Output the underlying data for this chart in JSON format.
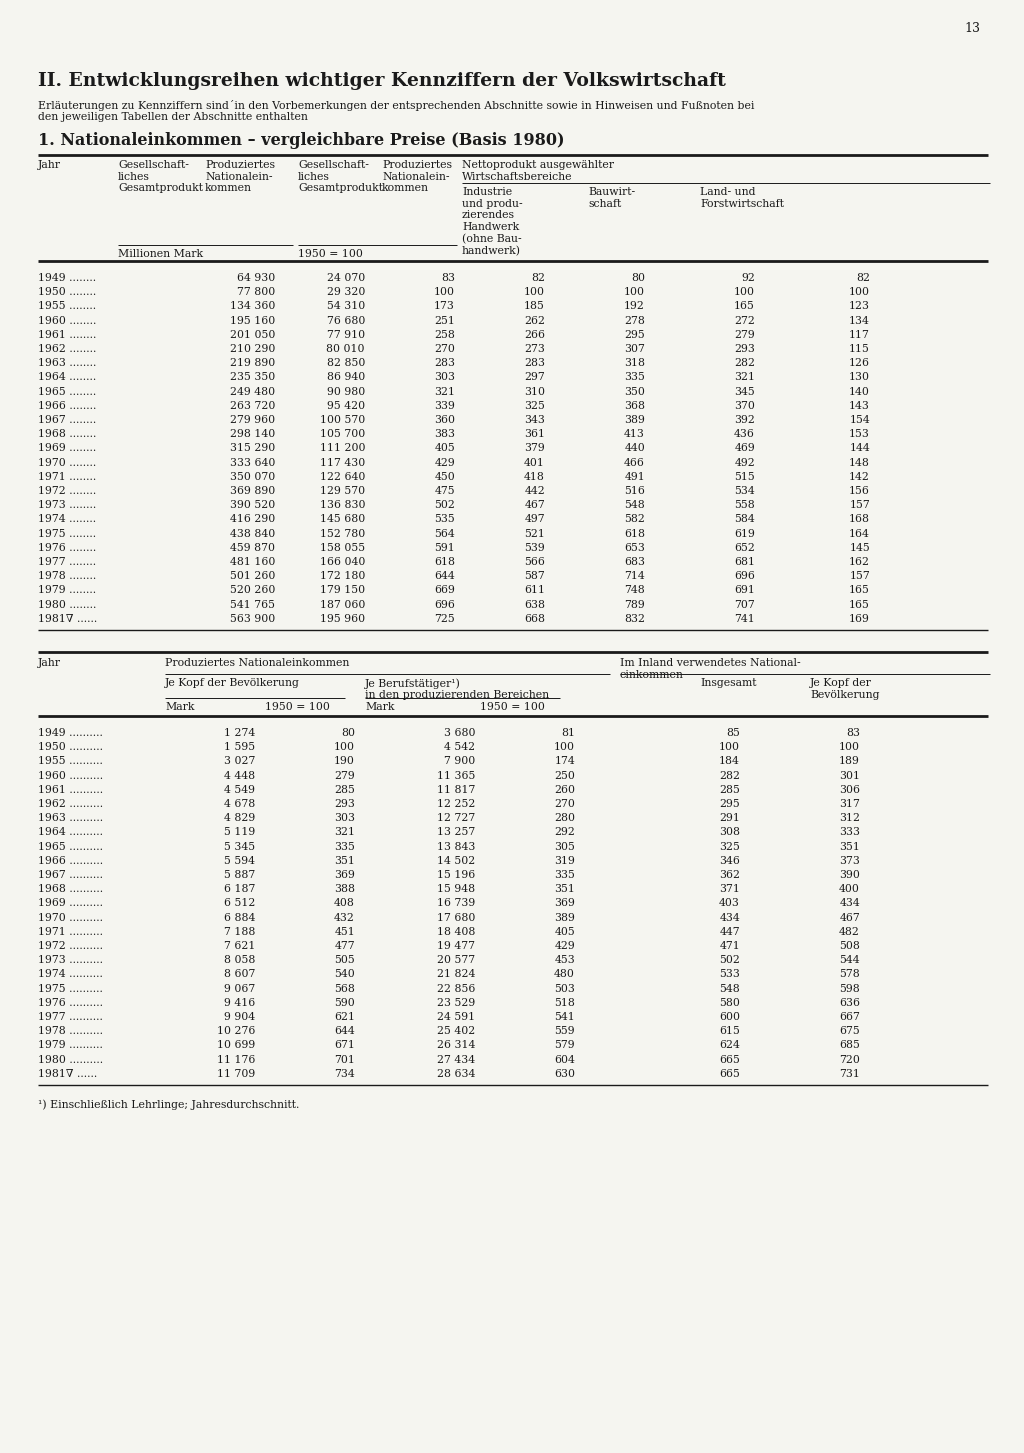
{
  "page_number": "13",
  "main_title": "II. Entwicklungsreihen wichtiger Kennziffern der Volkswirtschaft",
  "subtitle_line1": "Erläuterungen zu Kennziffern sind´in den Vorbemerkungen der entsprechenden Abschnitte sowie in Hinweisen und Fußnoten bei",
  "subtitle_line2": "den jeweiligen Tabellen der Abschnitte enthalten",
  "section_title": "1. Nationaleinkommen – vergleichbare Preise (Basis 1980)",
  "t1_col_headers": [
    "Jahr",
    "Gesellschaft-\nliches\nGesamtprodukt",
    "Produziertes\nNationalein-\nkommen",
    "Gesellschaft-\nliches\nGesamtprodukt",
    "Produziertes\nNationalein-\nkommen",
    "Nettoprodukt ausgewählter\nWirtschaftsbereiche"
  ],
  "t1_sub_headers": [
    "Industrie\nund produ-\nzierendes\nHandwerk\n(ohne Bau-\nhandwerk)",
    "Bauwirt-\nschaft",
    "Land- und\nForstwirtschaft"
  ],
  "t1_unit1": "Millionen Mark",
  "t1_unit2": "1950 = 100",
  "table1_data": [
    [
      "1949",
      "64 930",
      "24 070",
      "83",
      "82",
      "80",
      "92",
      "82"
    ],
    [
      "1950",
      "77 800",
      "29 320",
      "100",
      "100",
      "100",
      "100",
      "100"
    ],
    [
      "1955",
      "134 360",
      "54 310",
      "173",
      "185",
      "192",
      "165",
      "123"
    ],
    [
      "1960",
      "195 160",
      "76 680",
      "251",
      "262",
      "278",
      "272",
      "134"
    ],
    [
      "1961",
      "201 050",
      "77 910",
      "258",
      "266",
      "295",
      "279",
      "117"
    ],
    [
      "1962",
      "210 290",
      "80 010",
      "270",
      "273",
      "307",
      "293",
      "115"
    ],
    [
      "1963",
      "219 890",
      "82 850",
      "283",
      "283",
      "318",
      "282",
      "126"
    ],
    [
      "1964",
      "235 350",
      "86 940",
      "303",
      "297",
      "335",
      "321",
      "130"
    ],
    [
      "1965",
      "249 480",
      "90 980",
      "321",
      "310",
      "350",
      "345",
      "140"
    ],
    [
      "1966",
      "263 720",
      "95 420",
      "339",
      "325",
      "368",
      "370",
      "143"
    ],
    [
      "1967",
      "279 960",
      "100 570",
      "360",
      "343",
      "389",
      "392",
      "154"
    ],
    [
      "1968",
      "298 140",
      "105 700",
      "383",
      "361",
      "413",
      "436",
      "153"
    ],
    [
      "1969",
      "315 290",
      "111 200",
      "405",
      "379",
      "440",
      "469",
      "144"
    ],
    [
      "1970",
      "333 640",
      "117 430",
      "429",
      "401",
      "466",
      "492",
      "148"
    ],
    [
      "1971",
      "350 070",
      "122 640",
      "450",
      "418",
      "491",
      "515",
      "142"
    ],
    [
      "1972",
      "369 890",
      "129 570",
      "475",
      "442",
      "516",
      "534",
      "156"
    ],
    [
      "1973",
      "390 520",
      "136 830",
      "502",
      "467",
      "548",
      "558",
      "157"
    ],
    [
      "1974",
      "416 290",
      "145 680",
      "535",
      "497",
      "582",
      "584",
      "168"
    ],
    [
      "1975",
      "438 840",
      "152 780",
      "564",
      "521",
      "618",
      "619",
      "164"
    ],
    [
      "1976",
      "459 870",
      "158 055",
      "591",
      "539",
      "653",
      "652",
      "145"
    ],
    [
      "1977",
      "481 160",
      "166 040",
      "618",
      "566",
      "683",
      "681",
      "162"
    ],
    [
      "1978",
      "501 260",
      "172 180",
      "644",
      "587",
      "714",
      "696",
      "157"
    ],
    [
      "1979",
      "520 260",
      "179 150",
      "669",
      "611",
      "748",
      "691",
      "165"
    ],
    [
      "1980",
      "541 765",
      "187 060",
      "696",
      "638",
      "789",
      "707",
      "165"
    ],
    [
      "1981∇",
      "563 900",
      "195 960",
      "725",
      "668",
      "832",
      "741",
      "169"
    ]
  ],
  "t2_header1": "Produziertes Nationaleinkommen",
  "t2_header2": "Im Inland verwendetes National-\neinkommen",
  "t2_sub1": "Je Kopf der Bevölkerung",
  "t2_sub2": "Je Berufstätiger¹)\nin den produzierenden Bereichen",
  "t2_sub3": "Insgesamt",
  "t2_sub4": "Je Kopf der\nBevölkerung",
  "t2_unit1a": "Mark",
  "t2_unit1b": "1950 = 100",
  "t2_unit2a": "Mark",
  "t2_unit2b": "1950 = 100",
  "table2_data": [
    [
      "1949",
      "1 274",
      "80",
      "3 680",
      "81",
      "85",
      "83"
    ],
    [
      "1950",
      "1 595",
      "100",
      "4 542",
      "100",
      "100",
      "100"
    ],
    [
      "1955",
      "3 027",
      "190",
      "7 900",
      "174",
      "184",
      "189"
    ],
    [
      "1960",
      "4 448",
      "279",
      "11 365",
      "250",
      "282",
      "301"
    ],
    [
      "1961",
      "4 549",
      "285",
      "11 817",
      "260",
      "285",
      "306"
    ],
    [
      "1962",
      "4 678",
      "293",
      "12 252",
      "270",
      "295",
      "317"
    ],
    [
      "1963",
      "4 829",
      "303",
      "12 727",
      "280",
      "291",
      "312"
    ],
    [
      "1964",
      "5 119",
      "321",
      "13 257",
      "292",
      "308",
      "333"
    ],
    [
      "1965",
      "5 345",
      "335",
      "13 843",
      "305",
      "325",
      "351"
    ],
    [
      "1966",
      "5 594",
      "351",
      "14 502",
      "319",
      "346",
      "373"
    ],
    [
      "1967",
      "5 887",
      "369",
      "15 196",
      "335",
      "362",
      "390"
    ],
    [
      "1968",
      "6 187",
      "388",
      "15 948",
      "351",
      "371",
      "400"
    ],
    [
      "1969",
      "6 512",
      "408",
      "16 739",
      "369",
      "403",
      "434"
    ],
    [
      "1970",
      "6 884",
      "432",
      "17 680",
      "389",
      "434",
      "467"
    ],
    [
      "1971",
      "7 188",
      "451",
      "18 408",
      "405",
      "447",
      "482"
    ],
    [
      "1972",
      "7 621",
      "477",
      "19 477",
      "429",
      "471",
      "508"
    ],
    [
      "1973",
      "8 058",
      "505",
      "20 577",
      "453",
      "502",
      "544"
    ],
    [
      "1974",
      "8 607",
      "540",
      "21 824",
      "480",
      "533",
      "578"
    ],
    [
      "1975",
      "9 067",
      "568",
      "22 856",
      "503",
      "548",
      "598"
    ],
    [
      "1976",
      "9 416",
      "590",
      "23 529",
      "518",
      "580",
      "636"
    ],
    [
      "1977",
      "9 904",
      "621",
      "24 591",
      "541",
      "600",
      "667"
    ],
    [
      "1978",
      "10 276",
      "644",
      "25 402",
      "559",
      "615",
      "675"
    ],
    [
      "1979",
      "10 699",
      "671",
      "26 314",
      "579",
      "624",
      "685"
    ],
    [
      "1980",
      "11 176",
      "701",
      "27 434",
      "604",
      "665",
      "720"
    ],
    [
      "1981∇",
      "11 709",
      "734",
      "28 634",
      "630",
      "665",
      "731"
    ]
  ],
  "footnote": "¹) Einschließlich Lehrlinge; Jahresdurchschnitt.",
  "bg_color": "#f5f5f0",
  "text_color": "#1a1a1a"
}
